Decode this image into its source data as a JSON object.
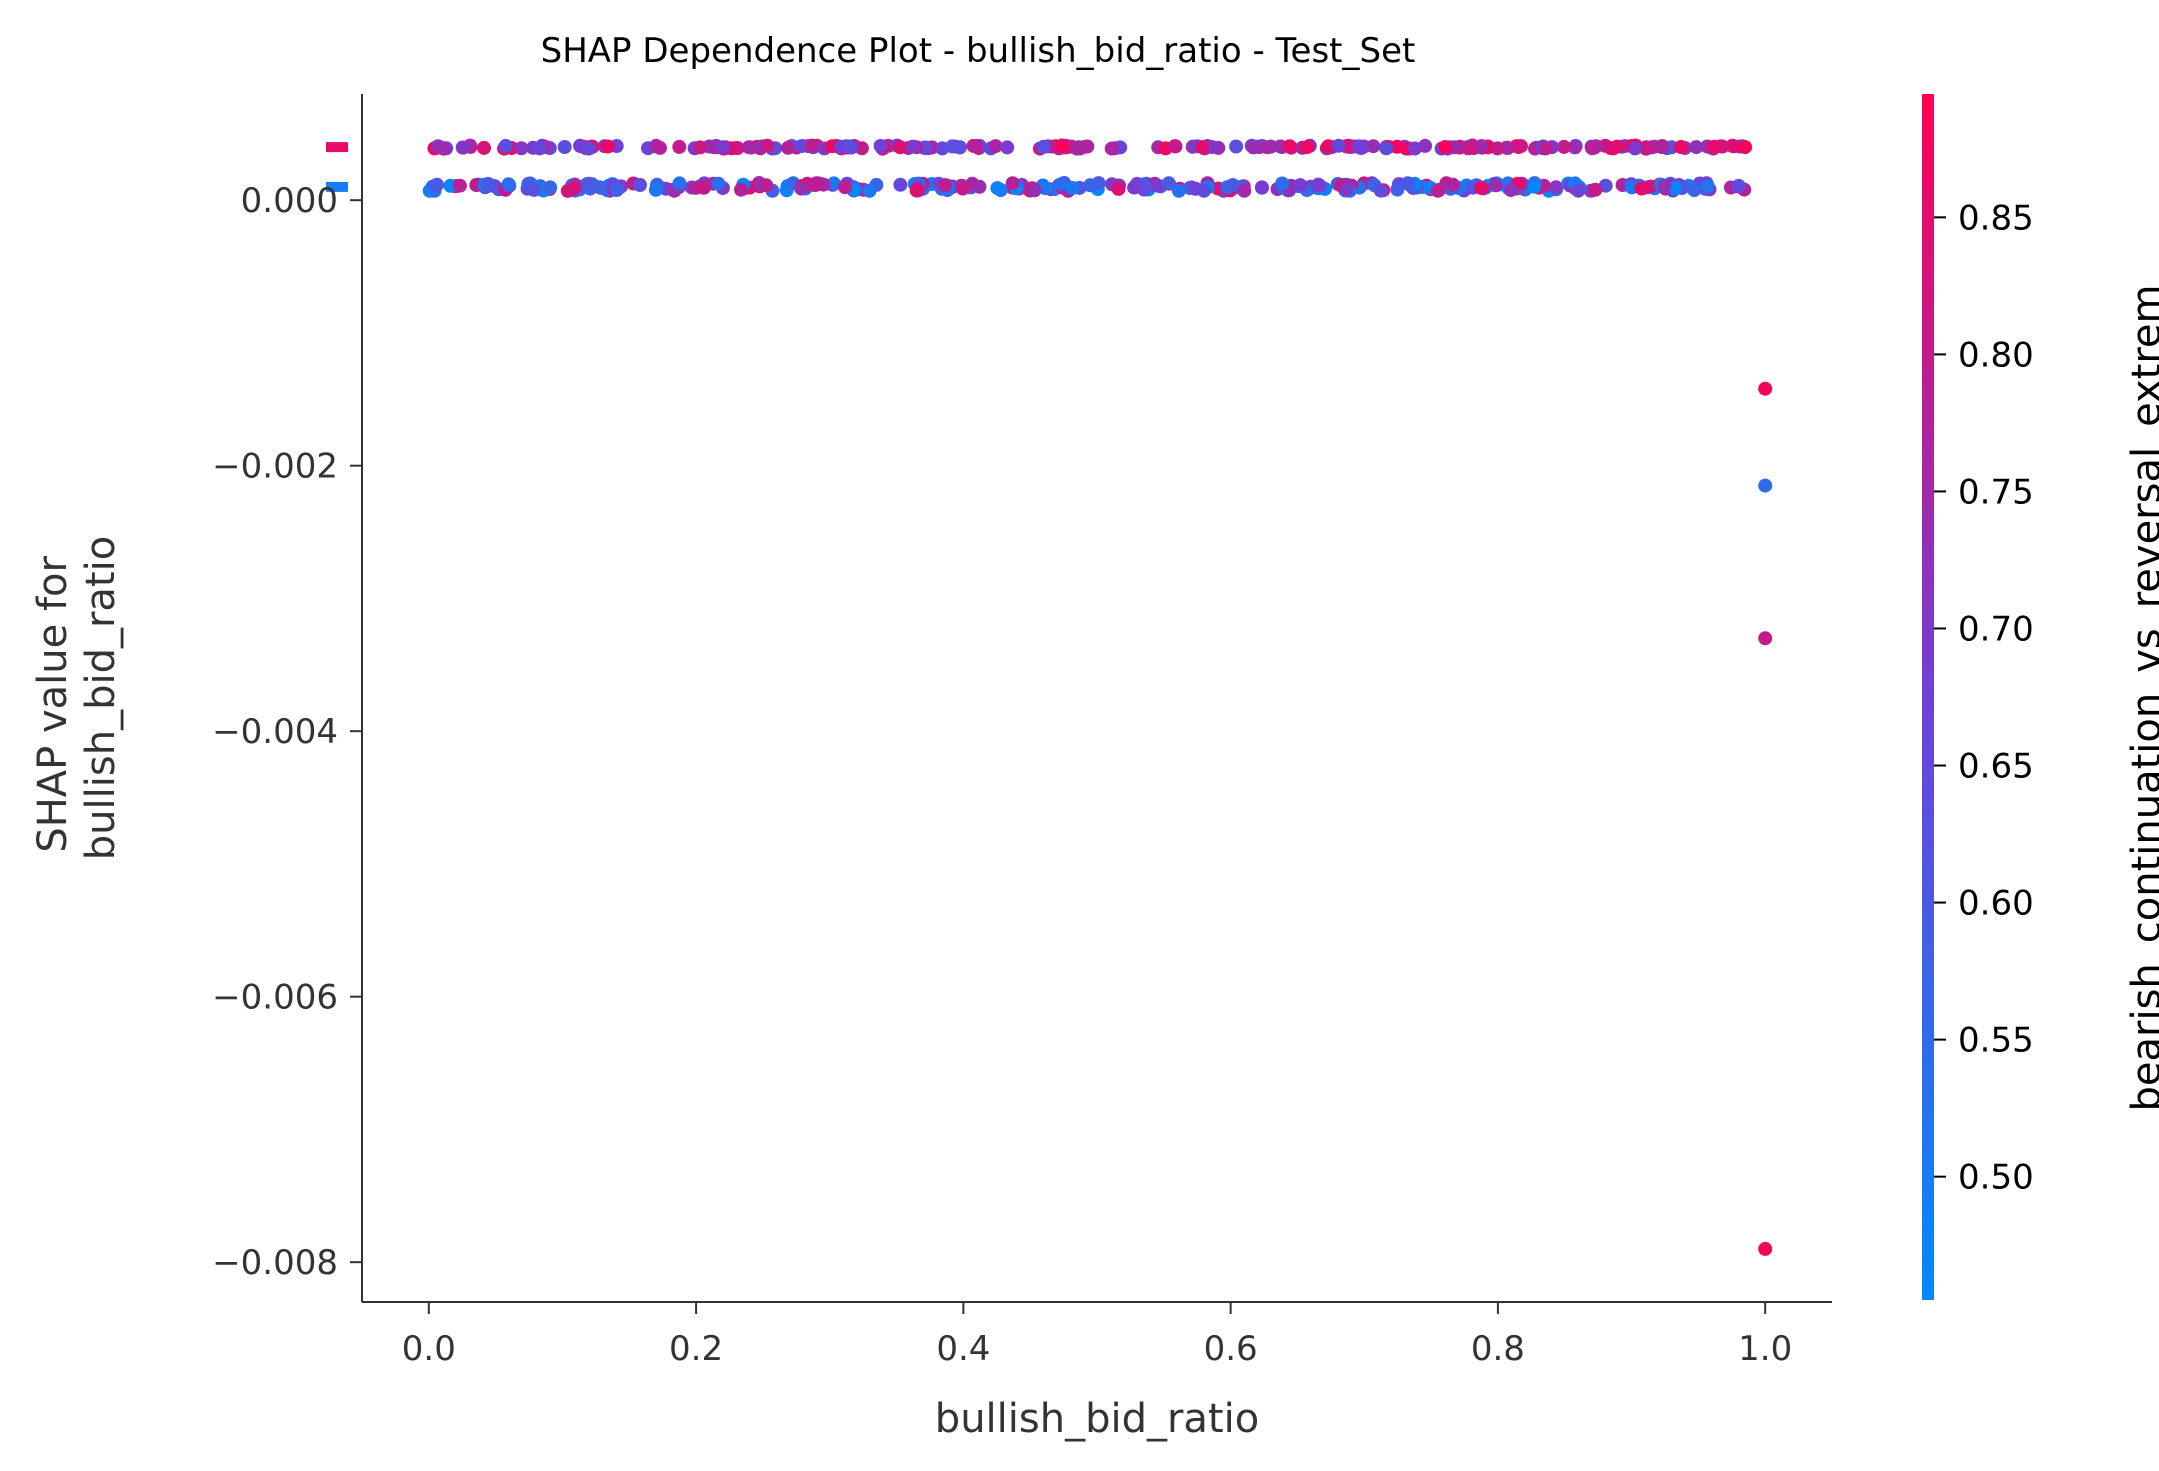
{
  "chart_data": {
    "type": "scatter",
    "title": "SHAP Dependence Plot - bullish_bid_ratio - Test_Set",
    "xlabel": "bullish_bid_ratio",
    "ylabel_lines": [
      "SHAP value for",
      "bullish_bid_ratio"
    ],
    "xlim": [
      -0.05,
      1.05
    ],
    "ylim": [
      -0.0083,
      0.0008
    ],
    "x_ticks": [
      0.0,
      0.2,
      0.4,
      0.6,
      0.8,
      1.0
    ],
    "x_tick_labels": [
      "0.0",
      "0.2",
      "0.4",
      "0.6",
      "0.8",
      "1.0"
    ],
    "y_ticks": [
      0.0,
      -0.002,
      -0.004,
      -0.006,
      -0.008
    ],
    "y_tick_labels": [
      "0.000",
      "−0.002",
      "−0.004",
      "−0.006",
      "−0.008"
    ],
    "colorbar": {
      "label": "bearish_continuation_vs_reversal_extrem",
      "range": [
        0.455,
        0.895
      ],
      "ticks": [
        0.5,
        0.55,
        0.6,
        0.65,
        0.7,
        0.75,
        0.8,
        0.85
      ],
      "tick_labels": [
        "0.50",
        "0.55",
        "0.60",
        "0.65",
        "0.70",
        "0.75",
        "0.80",
        "0.85"
      ],
      "colors": [
        "#008afb",
        "#7040d8",
        "#ff0052"
      ]
    },
    "bands": [
      {
        "y": 0.0004,
        "x_range": [
          0.0,
          0.985
        ],
        "color_value_range": [
          0.62,
          0.89
        ],
        "approx_points": 260
      },
      {
        "y": 0.0001,
        "x_range": [
          0.0,
          0.985
        ],
        "color_value_range": [
          0.46,
          0.86
        ],
        "approx_points": 320
      }
    ],
    "points": [
      {
        "x": 0.985,
        "y": 0.0004,
        "c": 0.88
      },
      {
        "x": 1.0,
        "y": -0.00142,
        "c": 0.88
      },
      {
        "x": 1.0,
        "y": -0.00215,
        "c": 0.55
      },
      {
        "x": 1.0,
        "y": -0.0033,
        "c": 0.8
      },
      {
        "x": 1.0,
        "y": -0.0079,
        "c": 0.88
      }
    ],
    "marginal_markers": [
      {
        "y": 0.0004,
        "c": 0.86
      },
      {
        "y": 0.0001,
        "c": 0.5
      }
    ]
  }
}
